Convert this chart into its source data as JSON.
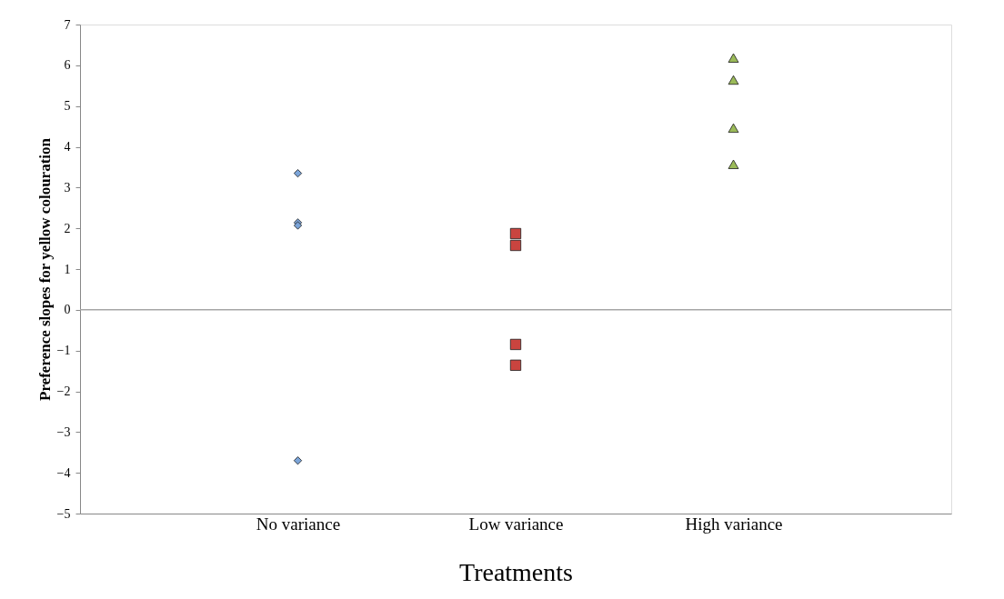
{
  "chart_data": {
    "type": "scatter",
    "xlabel": "Treatments",
    "ylabel": "Preference slopes for yellow colouration",
    "categories": [
      "No variance",
      "Low variance",
      "High variance"
    ],
    "series": [
      {
        "x": [
          "No variance",
          "No variance",
          "No variance",
          "No variance"
        ],
        "values": [
          3.35,
          2.14,
          2.07,
          -3.7
        ],
        "color": "#7ba4d8",
        "marker": "diamond"
      },
      {
        "x": [
          "Low variance",
          "Low variance",
          "Low variance",
          "Low variance"
        ],
        "values": [
          1.87,
          1.58,
          -0.85,
          -1.36
        ],
        "color": "#c9443f",
        "marker": "square"
      },
      {
        "x": [
          "High variance",
          "High variance",
          "High variance",
          "High variance"
        ],
        "values": [
          6.18,
          5.64,
          4.46,
          3.57
        ],
        "color": "#9bbb59",
        "marker": "triangle"
      }
    ],
    "ylim": [
      -5,
      7
    ],
    "yticks": [
      -5,
      -4,
      -3,
      -2,
      -1,
      0,
      1,
      2,
      3,
      4,
      5,
      6,
      7
    ],
    "grid": false,
    "ref_lines": [
      {
        "axis": "y",
        "value": 0,
        "color": "#a6a6a6"
      }
    ]
  }
}
